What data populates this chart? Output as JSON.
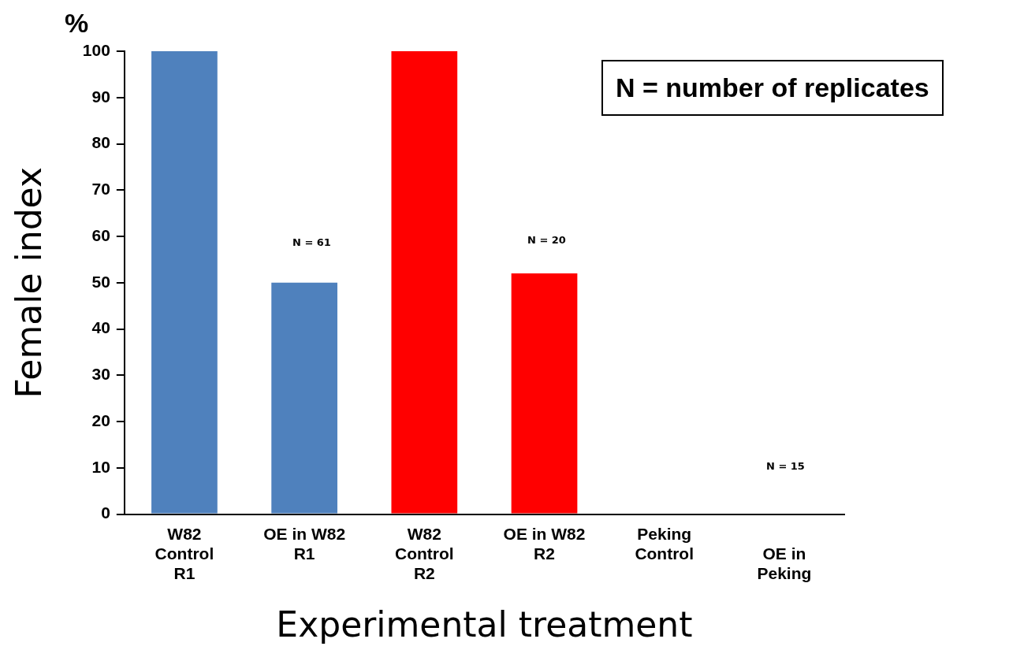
{
  "chart_data": {
    "type": "bar",
    "xlabel": "Experimental treatment",
    "ylabel": "Female index",
    "categories": [
      "W82\nControl\nR1",
      "OE in W82\nR1",
      "W82\nControl\nR2",
      "OE in W82\nR2",
      "Peking\nControl",
      "\nOE in\nPeking"
    ],
    "values": [
      100,
      50,
      100,
      52,
      0,
      0
    ],
    "colors": [
      "#4f81bd",
      "#4f81bd",
      "#ff0000",
      "#ff0000",
      "#ff0000",
      "#ff0000"
    ],
    "ylim": [
      0,
      100
    ],
    "yticks": [
      0,
      10,
      20,
      30,
      40,
      50,
      60,
      70,
      80,
      90,
      100
    ],
    "grid": false,
    "legend": false,
    "annotations": [
      "%",
      "N = number of replicates",
      "N = 61",
      "N = 20",
      "N = 15"
    ]
  }
}
